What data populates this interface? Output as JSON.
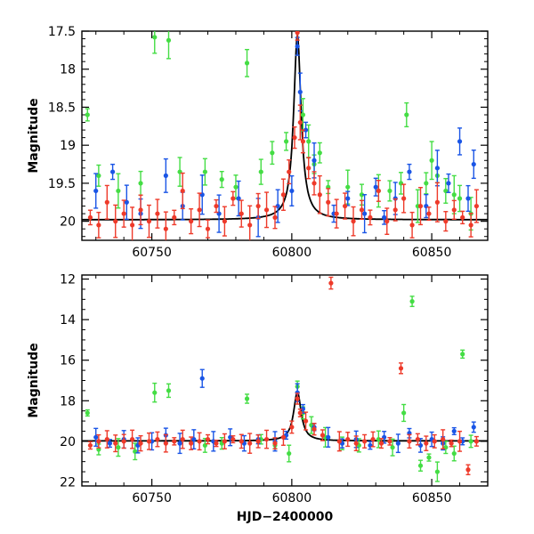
{
  "chart_data": [
    {
      "type": "scatter",
      "ylabel": "Magnitude",
      "xlabel": "",
      "xlim": [
        60725,
        60870
      ],
      "ylim": [
        20.25,
        17.5
      ],
      "y_inverted": true,
      "xticks": [
        60750,
        60800,
        60850
      ],
      "yticks": [
        17.5,
        18,
        18.5,
        19,
        19.5,
        20
      ],
      "ytick_labels": [
        "17.5",
        "18",
        "18.5",
        "19",
        "19.5",
        "20"
      ],
      "model_curve": {
        "baseline": 19.98,
        "peak_x": 60802,
        "peak_mag": 17.55,
        "width_days": 1.6
      },
      "colors": {
        "green": "#44dd44",
        "blue": "#1a55e6",
        "red": "#ee3a2a",
        "model": "#000000"
      },
      "series": [
        {
          "color": "green",
          "points": [
            [
              60727,
              18.6
            ],
            [
              60731,
              19.4
            ],
            [
              60738,
              19.6
            ],
            [
              60751,
              17.58
            ],
            [
              60756,
              17.62
            ],
            [
              60769,
              19.35
            ],
            [
              60784,
              17.92
            ],
            [
              60793,
              19.1
            ],
            [
              60798,
              18.95
            ],
            [
              60808,
              19.25
            ],
            [
              60813,
              19.55
            ],
            [
              60831,
              19.6
            ],
            [
              60839,
              19.5
            ],
            [
              60841,
              18.6
            ],
            [
              60845,
              19.8
            ],
            [
              60850,
              19.2
            ],
            [
              60855,
              19.6
            ],
            [
              60860,
              19.7
            ],
            [
              60864,
              19.9
            ],
            [
              60804,
              18.6
            ],
            [
              60806,
              18.95
            ],
            [
              60810,
              19.1
            ],
            [
              60848,
              19.5
            ],
            [
              60852,
              19.4
            ],
            [
              60858,
              19.65
            ],
            [
              60746,
              19.5
            ],
            [
              60760,
              19.35
            ],
            [
              60775,
              19.45
            ],
            [
              60780,
              19.55
            ],
            [
              60789,
              19.35
            ],
            [
              60820,
              19.55
            ],
            [
              60825,
              19.65
            ],
            [
              60835,
              19.6
            ]
          ]
        },
        {
          "color": "blue",
          "points": [
            [
              60730,
              19.6
            ],
            [
              60736,
              19.35
            ],
            [
              60741,
              19.75
            ],
            [
              60746,
              19.9
            ],
            [
              60755,
              19.4
            ],
            [
              60761,
              19.8
            ],
            [
              60768,
              19.65
            ],
            [
              60774,
              19.9
            ],
            [
              60781,
              19.7
            ],
            [
              60788,
              19.95
            ],
            [
              60795,
              19.8
            ],
            [
              60800,
              19.6
            ],
            [
              60802,
              17.7
            ],
            [
              60803,
              18.3
            ],
            [
              60805,
              18.8
            ],
            [
              60808,
              19.2
            ],
            [
              60815,
              19.9
            ],
            [
              60820,
              19.7
            ],
            [
              60826,
              19.9
            ],
            [
              60830,
              19.55
            ],
            [
              60837,
              19.7
            ],
            [
              60842,
              19.35
            ],
            [
              60848,
              19.8
            ],
            [
              60852,
              19.3
            ],
            [
              60856,
              19.5
            ],
            [
              60860,
              18.95
            ],
            [
              60865,
              19.25
            ],
            [
              60863,
              19.7
            ],
            [
              60833,
              19.95
            ]
          ]
        },
        {
          "color": "red",
          "points": [
            [
              60728,
              19.95
            ],
            [
              60731,
              20.05
            ],
            [
              60734,
              19.75
            ],
            [
              60737,
              20.0
            ],
            [
              60740,
              19.9
            ],
            [
              60743,
              20.05
            ],
            [
              60746,
              19.85
            ],
            [
              60749,
              20.0
            ],
            [
              60752,
              19.9
            ],
            [
              60755,
              20.1
            ],
            [
              60758,
              19.95
            ],
            [
              60761,
              19.6
            ],
            [
              60764,
              20.0
            ],
            [
              60767,
              19.85
            ],
            [
              60770,
              20.1
            ],
            [
              60773,
              19.8
            ],
            [
              60776,
              20.0
            ],
            [
              60779,
              19.7
            ],
            [
              60782,
              19.9
            ],
            [
              60785,
              20.05
            ],
            [
              60788,
              19.8
            ],
            [
              60791,
              19.85
            ],
            [
              60794,
              19.95
            ],
            [
              60797,
              19.65
            ],
            [
              60799,
              19.35
            ],
            [
              60801,
              18.9
            ],
            [
              60802,
              17.52
            ],
            [
              60803,
              18.7
            ],
            [
              60804,
              18.95
            ],
            [
              60806,
              19.3
            ],
            [
              60808,
              19.5
            ],
            [
              60810,
              19.65
            ],
            [
              60813,
              19.75
            ],
            [
              60816,
              19.9
            ],
            [
              60819,
              19.8
            ],
            [
              60822,
              20.0
            ],
            [
              60825,
              19.85
            ],
            [
              60828,
              19.95
            ],
            [
              60831,
              19.6
            ],
            [
              60834,
              20.0
            ],
            [
              60837,
              19.85
            ],
            [
              60840,
              19.7
            ],
            [
              60843,
              20.05
            ],
            [
              60846,
              19.8
            ],
            [
              60849,
              19.9
            ],
            [
              60852,
              19.75
            ],
            [
              60855,
              20.0
            ],
            [
              60858,
              19.85
            ],
            [
              60861,
              19.95
            ],
            [
              60864,
              20.05
            ],
            [
              60866,
              19.8
            ]
          ]
        }
      ]
    },
    {
      "type": "scatter",
      "ylabel": "Magnitude",
      "xlabel": "HJD−2400000",
      "xlim": [
        60725,
        60870
      ],
      "ylim": [
        22.2,
        11.8
      ],
      "y_inverted": true,
      "xticks": [
        60750,
        60800,
        60850
      ],
      "yticks": [
        12,
        14,
        16,
        18,
        20,
        22
      ],
      "ytick_labels": [
        "12",
        "14",
        "16",
        "18",
        "20",
        "22"
      ],
      "model_curve": {
        "baseline": 19.98,
        "peak_x": 60802,
        "peak_mag": 17.55,
        "width_days": 1.6
      },
      "colors": {
        "green": "#44dd44",
        "blue": "#1a55e6",
        "red": "#ee3a2a",
        "model": "#000000"
      },
      "series": [
        {
          "color": "green",
          "points": [
            [
              60727,
              18.6
            ],
            [
              60731,
              20.4
            ],
            [
              60738,
              20.3
            ],
            [
              60744,
              20.5
            ],
            [
              60751,
              17.6
            ],
            [
              60756,
              17.5
            ],
            [
              60769,
              20.2
            ],
            [
              60775,
              20.1
            ],
            [
              60784,
              17.9
            ],
            [
              60789,
              19.9
            ],
            [
              60794,
              20.2
            ],
            [
              60799,
              20.6
            ],
            [
              60802,
              17.3
            ],
            [
              60804,
              18.6
            ],
            [
              60807,
              19.2
            ],
            [
              60812,
              19.8
            ],
            [
              60818,
              20.1
            ],
            [
              60824,
              20.2
            ],
            [
              60831,
              19.9
            ],
            [
              60836,
              20.3
            ],
            [
              60840,
              18.6
            ],
            [
              60843,
              13.1
            ],
            [
              60846,
              21.2
            ],
            [
              60849,
              20.8
            ],
            [
              60852,
              21.5
            ],
            [
              60855,
              20.3
            ],
            [
              60858,
              20.6
            ],
            [
              60861,
              15.7
            ],
            [
              60864,
              20.0
            ]
          ]
        },
        {
          "color": "blue",
          "points": [
            [
              60730,
              19.8
            ],
            [
              60735,
              20.1
            ],
            [
              60740,
              19.9
            ],
            [
              60745,
              20.2
            ],
            [
              60750,
              20.0
            ],
            [
              60755,
              19.7
            ],
            [
              60760,
              20.1
            ],
            [
              60765,
              19.9
            ],
            [
              60768,
              16.9
            ],
            [
              60772,
              20.0
            ],
            [
              60778,
              19.8
            ],
            [
              60783,
              20.1
            ],
            [
              60788,
              19.9
            ],
            [
              60794,
              20.0
            ],
            [
              60798,
              19.7
            ],
            [
              60802,
              17.6
            ],
            [
              60804,
              18.4
            ],
            [
              60808,
              19.3
            ],
            [
              60813,
              19.8
            ],
            [
              60818,
              20.1
            ],
            [
              60823,
              19.9
            ],
            [
              60828,
              20.2
            ],
            [
              60833,
              19.8
            ],
            [
              60838,
              20.1
            ],
            [
              60842,
              19.6
            ],
            [
              60846,
              20.2
            ],
            [
              60850,
              19.9
            ],
            [
              60854,
              20.1
            ],
            [
              60858,
              19.5
            ],
            [
              60861,
              20.0
            ],
            [
              60865,
              19.3
            ]
          ]
        },
        {
          "color": "red",
          "points": [
            [
              60728,
              20.2
            ],
            [
              60731,
              20.0
            ],
            [
              60734,
              19.9
            ],
            [
              60737,
              20.1
            ],
            [
              60740,
              20.0
            ],
            [
              60743,
              19.9
            ],
            [
              60746,
              20.1
            ],
            [
              60749,
              20.0
            ],
            [
              60752,
              19.9
            ],
            [
              60755,
              20.1
            ],
            [
              60758,
              20.0
            ],
            [
              60761,
              19.9
            ],
            [
              60764,
              20.1
            ],
            [
              60767,
              20.0
            ],
            [
              60770,
              19.9
            ],
            [
              60773,
              20.1
            ],
            [
              60776,
              20.0
            ],
            [
              60779,
              19.9
            ],
            [
              60782,
              20.0
            ],
            [
              60785,
              20.1
            ],
            [
              60788,
              20.0
            ],
            [
              60791,
              19.9
            ],
            [
              60794,
              20.1
            ],
            [
              60797,
              19.8
            ],
            [
              60800,
              19.3
            ],
            [
              60802,
              17.9
            ],
            [
              60803,
              18.6
            ],
            [
              60805,
              19.0
            ],
            [
              60808,
              19.4
            ],
            [
              60811,
              19.7
            ],
            [
              60814,
              12.2
            ],
            [
              60817,
              20.0
            ],
            [
              60820,
              19.9
            ],
            [
              60823,
              20.1
            ],
            [
              60826,
              20.0
            ],
            [
              60829,
              19.9
            ],
            [
              60832,
              20.1
            ],
            [
              60835,
              20.0
            ],
            [
              60839,
              16.4
            ],
            [
              60842,
              20.0
            ],
            [
              60845,
              19.9
            ],
            [
              60848,
              20.1
            ],
            [
              60851,
              20.0
            ],
            [
              60854,
              19.9
            ],
            [
              60857,
              20.1
            ],
            [
              60860,
              20.0
            ],
            [
              60863,
              21.4
            ],
            [
              60866,
              20.0
            ]
          ]
        }
      ]
    }
  ]
}
